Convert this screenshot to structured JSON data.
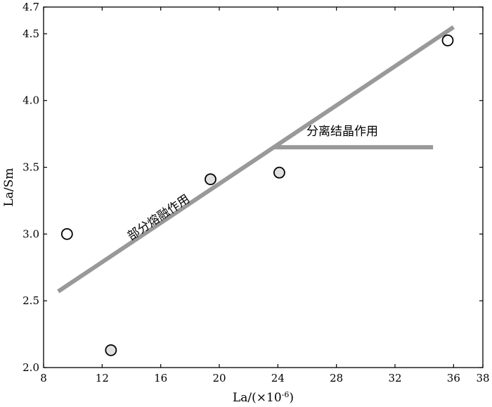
{
  "chart_data": {
    "type": "scatter",
    "xlabel_base": "La/(×10",
    "xlabel_exp": "-6",
    "xlabel_close": ")",
    "ylabel": "La/Sm",
    "xlim": [
      8,
      38
    ],
    "ylim": [
      2.0,
      4.7
    ],
    "xticks": [
      8,
      12,
      16,
      20,
      24,
      28,
      32,
      36,
      38
    ],
    "yticks": [
      2.0,
      2.5,
      3.0,
      3.5,
      4.0,
      4.5,
      4.7
    ],
    "xtick_labels": [
      "8",
      "12",
      "16",
      "20",
      "24",
      "28",
      "32",
      "36",
      "38"
    ],
    "ytick_labels": [
      "2.0",
      "2.5",
      "3.0",
      "3.5",
      "4.0",
      "4.5",
      "4.7"
    ],
    "points": [
      {
        "x": 9.6,
        "y": 3.0,
        "style": "open"
      },
      {
        "x": 12.6,
        "y": 2.13,
        "style": "filled"
      },
      {
        "x": 19.4,
        "y": 3.41,
        "style": "filled"
      },
      {
        "x": 24.1,
        "y": 3.46,
        "style": "filled"
      },
      {
        "x": 35.6,
        "y": 4.45,
        "style": "open"
      }
    ],
    "trend_lines": [
      {
        "name": "部分熔融作用",
        "x": [
          9.0,
          36.0
        ],
        "y": [
          2.57,
          4.55
        ]
      },
      {
        "name": "分离结晶作用",
        "x": [
          23.8,
          34.6
        ],
        "y": [
          3.65,
          3.65
        ]
      }
    ],
    "annotations": [
      {
        "text": "部分熔融作用",
        "x": 16.0,
        "y": 3.1,
        "rotate_along": 0
      },
      {
        "text": "分离结晶作用",
        "x": 28.4,
        "y": 3.74,
        "rotate_along": 1
      }
    ],
    "colors": {
      "trend": "#999999",
      "point_fill_filled": "#e0e0e0",
      "point_fill_open": "#ffffff",
      "point_stroke": "#000000",
      "axis": "#000000"
    },
    "grid": false
  }
}
